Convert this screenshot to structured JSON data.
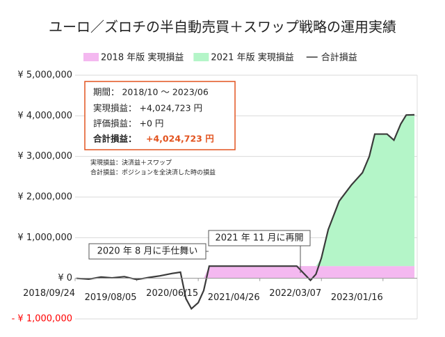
{
  "chart_data": {
    "type": "stacked_area_line",
    "title": "ユーロ／ズロチの半自動売買＋スワップ戦略の運用実績",
    "x": [
      "2018/10/01",
      "2018/12/03",
      "2019/02/04",
      "2019/04/01",
      "2019/06/03",
      "2019/08/05",
      "2019/10/07",
      "2019/12/02",
      "2020/02/03",
      "2020/03/16",
      "2020/04/13",
      "2020/05/11",
      "2020/06/15",
      "2020/07/13",
      "2020/08/10",
      "2021/01/04",
      "2021/06/07",
      "2021/11/01",
      "2022/01/10",
      "2022/02/07",
      "2022/03/07",
      "2022/04/11",
      "2022/06/06",
      "2022/08/08",
      "2022/10/03",
      "2022/11/07",
      "2022/12/05",
      "2023/02/06",
      "2023/03/13",
      "2023/04/17",
      "2023/05/15",
      "2023/06/26"
    ],
    "series": [
      {
        "name": "2018 年版 実現損益",
        "color": "#f4b8f0",
        "kind": "area",
        "values": [
          0,
          0,
          0,
          0,
          0,
          0,
          0,
          0,
          0,
          0,
          0,
          0,
          0,
          0,
          300000,
          300000,
          300000,
          300000,
          300000,
          300000,
          300000,
          300000,
          300000,
          300000,
          300000,
          300000,
          300000,
          300000,
          300000,
          300000,
          300000,
          300000
        ]
      },
      {
        "name": "2021 年版 実現損益",
        "color": "#b4f5c8",
        "kind": "area",
        "values": [
          0,
          0,
          0,
          0,
          0,
          0,
          0,
          0,
          0,
          0,
          0,
          0,
          0,
          0,
          0,
          0,
          0,
          0,
          0,
          0,
          200000,
          900000,
          1600000,
          2000000,
          2300000,
          2700000,
          3250000,
          3250000,
          3100000,
          3500000,
          3720000,
          3724723
        ]
      },
      {
        "name": "合計損益",
        "color": "#3a3a3a",
        "kind": "line",
        "values": [
          0,
          -20000,
          30000,
          10000,
          40000,
          -30000,
          20000,
          60000,
          120000,
          150000,
          -500000,
          -750000,
          -600000,
          -300000,
          300000,
          300000,
          300000,
          300000,
          -50000,
          100000,
          500000,
          1200000,
          1900000,
          2300000,
          2600000,
          3000000,
          3550000,
          3550000,
          3400000,
          3800000,
          4020000,
          4024723
        ]
      }
    ],
    "xlim": [
      "2018/09/24",
      "2023/07/10"
    ],
    "xticks": [
      "2018/09/24",
      "2019/08/05",
      "2020/06/15",
      "2021/04/26",
      "2022/03/07",
      "2023/01/16"
    ],
    "ylim": [
      -1000000,
      5000000
    ],
    "yticks": [
      {
        "value": -1000000,
        "label": "- ¥ 1,000,000"
      },
      {
        "value": 0,
        "label": "¥ 0"
      },
      {
        "value": 1000000,
        "label": "¥ 1,000,000"
      },
      {
        "value": 2000000,
        "label": "¥ 2,000,000"
      },
      {
        "value": 3000000,
        "label": "¥ 3,000,000"
      },
      {
        "value": 4000000,
        "label": "¥ 4,000,000"
      },
      {
        "value": 5000000,
        "label": "¥ 5,000,000"
      }
    ],
    "negative_tick_color": "#ff0000",
    "grid": true,
    "legend": "top",
    "summary_box": {
      "period": "期間： 2018/10 ～ 2023/06",
      "realized": "実現損益： +4,024,723 円",
      "unrealized": "評価損益： +0 円",
      "total_label": "合計損益：",
      "total_value": "+4,024,723 円"
    },
    "notes": [
      "実現損益：決済益＋スワップ",
      "合計損益：ポジションを全決済した時の損益"
    ],
    "annotations": [
      "2020 年 8 月に手仕舞い",
      "2021 年 11 月に再開"
    ]
  }
}
